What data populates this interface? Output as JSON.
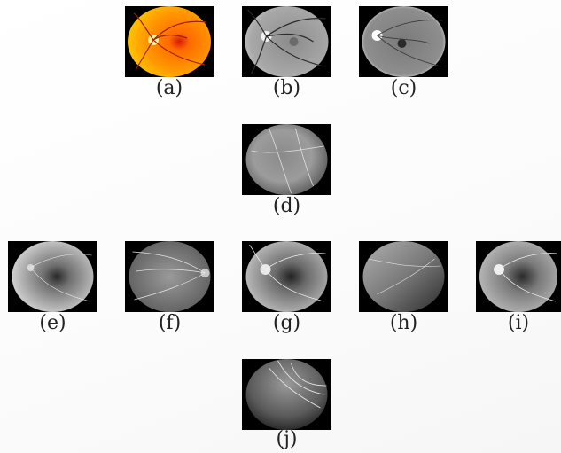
{
  "figure": {
    "panels": [
      {
        "id": "a",
        "label": "(a)",
        "kind": "color-fundus"
      },
      {
        "id": "b",
        "label": "(b)",
        "kind": "green-channel"
      },
      {
        "id": "c",
        "label": "(c)",
        "kind": "enhanced"
      },
      {
        "id": "d",
        "label": "(d)",
        "kind": "angiogram"
      },
      {
        "id": "e",
        "label": "(e)",
        "kind": "angiogram"
      },
      {
        "id": "f",
        "label": "(f)",
        "kind": "angiogram"
      },
      {
        "id": "g",
        "label": "(g)",
        "kind": "angiogram"
      },
      {
        "id": "h",
        "label": "(h)",
        "kind": "angiogram"
      },
      {
        "id": "i",
        "label": "(i)",
        "kind": "angiogram"
      },
      {
        "id": "j",
        "label": "(j)",
        "kind": "angiogram"
      }
    ],
    "colors": {
      "background": "#000000",
      "fundus_inner": "#ff7a00",
      "fundus_outer": "#ffc000",
      "macula": "#d01010",
      "disc": "#fff2a0",
      "gray_light": "#cfcfcf",
      "gray_dark": "#3a3a3a"
    }
  }
}
